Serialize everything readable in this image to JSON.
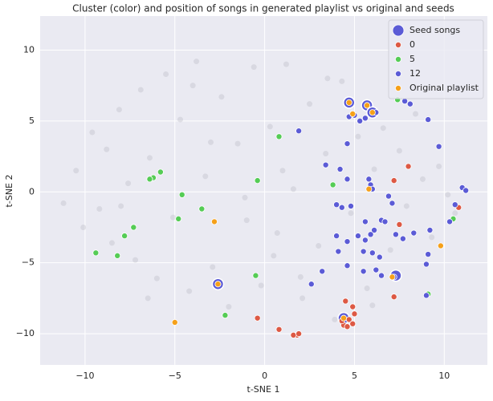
{
  "chart_data": {
    "type": "scatter",
    "title": "Cluster (color) and position of songs in generated playlist vs original and seeds",
    "xlabel": "t-SNE 1",
    "ylabel": "t-SNE 2",
    "xlim": [
      -12.5,
      12.4
    ],
    "ylim": [
      -12.2,
      12.4
    ],
    "xticks": [
      {
        "value": -10,
        "label": "−10"
      },
      {
        "value": -5,
        "label": "−5"
      },
      0,
      5,
      10
    ],
    "yticks": [
      {
        "value": -10,
        "label": "−10"
      },
      {
        "value": -5,
        "label": "−5"
      },
      0,
      5,
      10
    ],
    "grid": true,
    "legend": "upper right",
    "series": [
      {
        "color": "#b8b8c4",
        "x": [
          -11.2,
          -10.5,
          -10.1,
          -9.6,
          -9.2,
          -8.8,
          -8.5,
          -8.1,
          -7.6,
          -7.2,
          -6.9,
          -6.4,
          -6.0,
          -5.5,
          -5.1,
          -4.7,
          -4.2,
          -3.8,
          -3.3,
          -2.9,
          -2.4,
          -2.0,
          -1.5,
          -1.1,
          -0.6,
          -0.2,
          0.3,
          0.7,
          1.2,
          1.6,
          2.1,
          2.5,
          3.0,
          3.4,
          3.9,
          4.3,
          4.8,
          5.2,
          5.7,
          6.1,
          6.6,
          7.0,
          7.5,
          7.9,
          8.4,
          8.8,
          9.3,
          9.7,
          10.2,
          10.6,
          -6.5,
          -3.0,
          0.5,
          3.5,
          -1.0,
          2.0,
          -4.0,
          6.0,
          -8.0,
          1.0
        ],
        "values": [
          -0.8,
          1.5,
          -2.5,
          4.2,
          -1.2,
          3.0,
          -3.6,
          5.8,
          0.6,
          -4.8,
          7.2,
          2.4,
          -6.1,
          8.3,
          -1.8,
          5.1,
          -7.0,
          9.2,
          1.1,
          -5.3,
          6.7,
          -8.1,
          3.4,
          -0.4,
          8.8,
          -6.6,
          4.6,
          -2.9,
          9.0,
          0.2,
          -7.5,
          6.2,
          -3.8,
          2.7,
          -9.0,
          7.8,
          -1.5,
          3.9,
          -6.8,
          1.6,
          4.5,
          -4.1,
          2.9,
          -1.0,
          5.5,
          0.9,
          -3.2,
          1.8,
          -0.2,
          -1.5,
          -7.5,
          3.5,
          -4.5,
          8.0,
          -2.0,
          -6.0,
          7.5,
          -8.0,
          -1.0,
          1.5
        ]
      },
      {
        "name": "Seed songs",
        "color": "#5b5bd6",
        "x": [
          4.7,
          5.7,
          6.0,
          7.3,
          -2.6,
          4.4
        ],
        "values": [
          6.3,
          6.1,
          5.6,
          -5.9,
          -6.5,
          -8.9
        ]
      },
      {
        "name": "0",
        "color": "#dd5944",
        "x": [
          4.5,
          4.9,
          5.0,
          4.7,
          4.9,
          4.4,
          4.6,
          4.3,
          1.8,
          1.6,
          1.9,
          0.8,
          -0.4,
          7.2,
          7.2,
          8.0,
          10.8,
          7.5
        ],
        "values": [
          -7.7,
          -8.1,
          -8.6,
          -9.0,
          -9.3,
          -9.4,
          -9.5,
          -9.1,
          -10.1,
          -10.1,
          -10.0,
          -9.7,
          -8.9,
          -7.4,
          0.8,
          1.8,
          -1.1,
          -2.3
        ]
      },
      {
        "name": "5",
        "color": "#55cc55",
        "x": [
          -9.4,
          -8.2,
          -7.8,
          -7.3,
          -5.8,
          -6.2,
          -6.4,
          -4.6,
          -4.8,
          -3.5,
          -2.2,
          -0.5,
          -0.4,
          0.8,
          3.8,
          7.4,
          9.1,
          10.5,
          -2.6
        ],
        "values": [
          -4.3,
          -4.5,
          -3.1,
          -2.5,
          1.4,
          1.0,
          0.9,
          -0.2,
          -1.9,
          -1.2,
          -8.7,
          -5.9,
          0.8,
          3.9,
          0.5,
          6.5,
          -7.2,
          -1.9,
          -6.5
        ]
      },
      {
        "name": "12",
        "color": "#5b5bd6",
        "x": [
          7.8,
          8.1,
          5.0,
          5.3,
          5.6,
          6.2,
          4.7,
          1.9,
          4.6,
          3.4,
          4.2,
          4.6,
          5.8,
          5.9,
          6.0,
          4.0,
          4.3,
          4.8,
          6.5,
          6.7,
          6.9,
          7.1,
          7.3,
          6.1,
          5.2,
          5.6,
          5.9,
          4.6,
          4.1,
          4.0,
          5.5,
          6.4,
          7.7,
          8.3,
          9.0,
          9.1,
          9.2,
          10.3,
          10.6,
          11.0,
          11.2,
          9.7,
          9.1,
          5.5,
          6.5,
          6.2,
          7.2,
          4.6,
          3.2,
          2.6,
          9.0,
          5.6,
          6.0
        ],
        "values": [
          6.4,
          6.2,
          5.4,
          5.0,
          5.2,
          5.6,
          5.3,
          4.3,
          3.4,
          1.9,
          1.6,
          0.9,
          0.9,
          0.5,
          0.2,
          -0.9,
          -1.1,
          -1.0,
          -2.0,
          -2.1,
          -0.3,
          -0.8,
          -3.0,
          -2.7,
          -3.1,
          -3.4,
          -3.0,
          -3.5,
          -4.2,
          -3.1,
          -4.2,
          -4.6,
          -3.3,
          -2.9,
          -5.1,
          -4.4,
          -2.7,
          -2.1,
          -0.9,
          0.3,
          0.1,
          3.2,
          5.1,
          -5.6,
          -5.9,
          -5.5,
          -6.0,
          -5.2,
          -5.6,
          -6.5,
          -7.3,
          -2.1,
          -4.3
        ]
      },
      {
        "name": "Original playlist",
        "color": "#f5a01a",
        "x": [
          4.7,
          5.7,
          6.0,
          4.9,
          5.8,
          -2.8,
          9.8,
          7.1,
          -2.6,
          -5.0,
          4.4
        ],
        "values": [
          6.3,
          6.1,
          5.6,
          5.5,
          0.2,
          -2.1,
          -3.8,
          -6.0,
          -6.5,
          -9.2,
          -8.9
        ]
      }
    ]
  }
}
